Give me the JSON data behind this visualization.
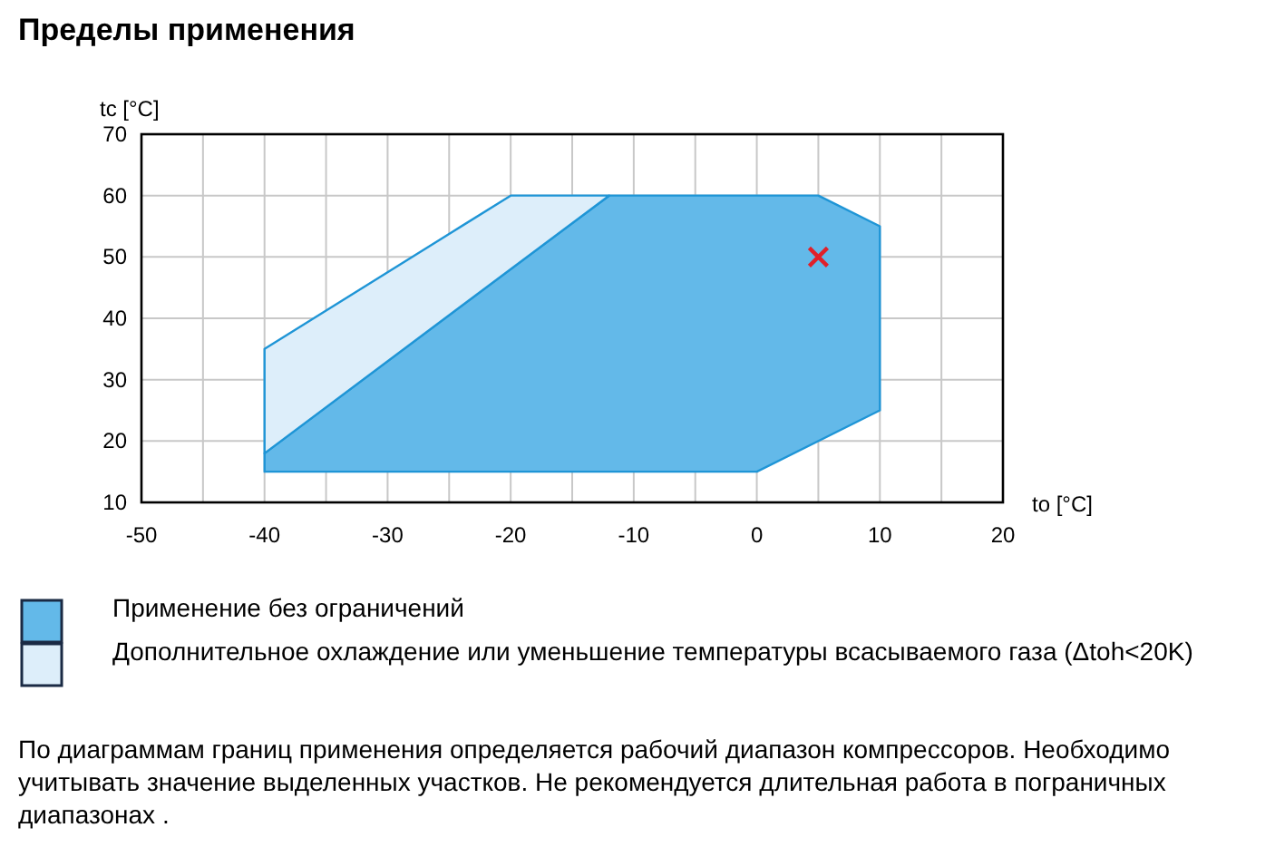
{
  "chart_data": {
    "type": "area",
    "title": "Пределы применения",
    "xlabel": "to [°C]",
    "ylabel": "tc [°C]",
    "xlim": [
      -50,
      20
    ],
    "ylim": [
      10,
      70
    ],
    "xticks": [
      -50,
      {
        "value": -45,
        "label": null
      },
      -40,
      {
        "value": -35,
        "label": null
      },
      -30,
      {
        "value": -25,
        "label": null
      },
      -20,
      {
        "value": -15,
        "label": null
      },
      -10,
      {
        "value": -5,
        "label": null
      },
      0,
      {
        "value": 5,
        "label": null
      },
      10,
      {
        "value": 15,
        "label": null
      },
      20
    ],
    "yticks": [
      10,
      20,
      30,
      40,
      50,
      60,
      70
    ],
    "grid": true,
    "legend": "bottom",
    "series": [
      {
        "name": "Применение без ограничений",
        "color": "#63b9e9",
        "x": [
          -40,
          0,
          10,
          10,
          5,
          -12,
          -40
        ],
        "values": [
          15,
          15,
          25,
          55,
          60,
          60,
          18
        ]
      },
      {
        "name": "Дополнительное охлаждение или уменьшение температуры всасываемого газа (Δtoh<20K)",
        "color": "#ddeefa",
        "x": [
          -40,
          -12,
          -20,
          -40
        ],
        "values": [
          18,
          60,
          60,
          35
        ]
      },
      {
        "type": "scatter",
        "marker": "cross",
        "color": "#e0202a",
        "x": [
          5
        ],
        "values": [
          50
        ]
      }
    ],
    "annotations": [
      "По диаграммам границ применения определяется рабочий диапазон компрессоров. Необходимо учитывать значение выделенных участков. Не рекомендуется длительная работа в пограничных диапазонах ."
    ]
  }
}
